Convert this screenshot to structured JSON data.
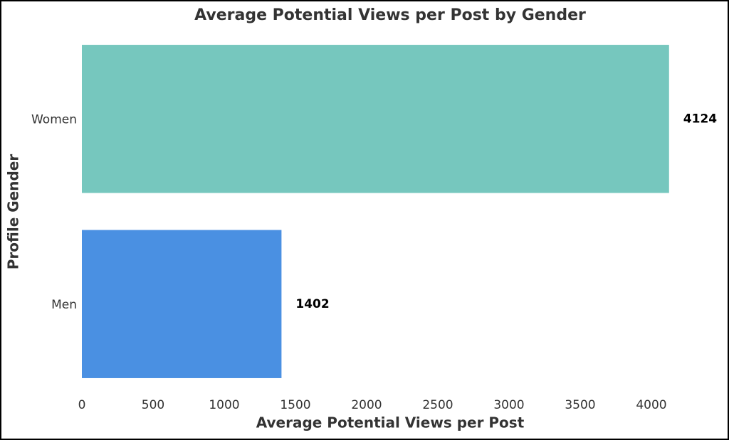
{
  "chart_data": {
    "type": "barh",
    "title": "Average Potential Views per Post by Gender",
    "x_label": "Average Potential Views per Post",
    "y_label": "Profile Gender",
    "categories": [
      "Women",
      "Men"
    ],
    "values": [
      4124,
      1402
    ],
    "colors": [
      "#76c7be",
      "#4a90e2"
    ],
    "xlim": [
      0,
      4330
    ],
    "xticks": [
      0,
      500,
      1000,
      1500,
      2000,
      2500,
      3000,
      3500,
      4000
    ],
    "grid": false
  }
}
